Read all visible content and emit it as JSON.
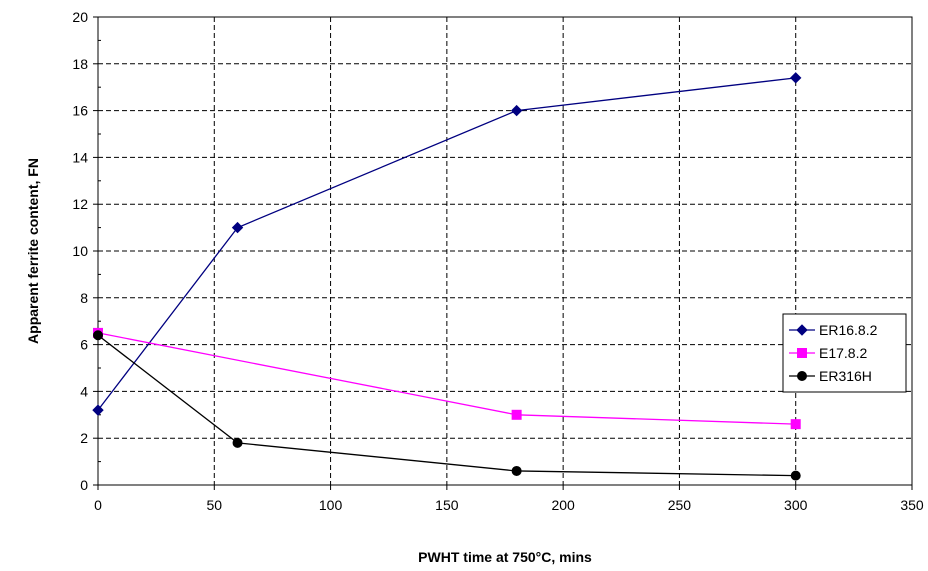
{
  "chart_data": {
    "type": "line",
    "title": "",
    "xlabel": "PWHT time at 750°C, mins",
    "ylabel": "Apparent ferrite content, FN",
    "xlim": [
      0,
      350
    ],
    "ylim": [
      0,
      20
    ],
    "xticks": [
      0,
      50,
      100,
      150,
      200,
      250,
      300,
      350
    ],
    "yticks": [
      0,
      2,
      4,
      6,
      8,
      10,
      12,
      14,
      16,
      18,
      20
    ],
    "grid": true,
    "legend_position": "right",
    "series": [
      {
        "name": "ER16.8.2",
        "marker": "diamond",
        "color": "#000080",
        "points": [
          [
            0,
            3.2
          ],
          [
            60,
            11.0
          ],
          [
            180,
            16.0
          ],
          [
            300,
            17.4
          ]
        ]
      },
      {
        "name": "E17.8.2",
        "marker": "square",
        "color": "#ff00ff",
        "points": [
          [
            0,
            6.5
          ],
          [
            180,
            3.0
          ],
          [
            300,
            2.6
          ]
        ]
      },
      {
        "name": "ER316H",
        "marker": "circle",
        "color": "#000000",
        "points": [
          [
            0,
            6.4
          ],
          [
            60,
            1.8
          ],
          [
            180,
            0.6
          ],
          [
            300,
            0.4
          ]
        ]
      }
    ]
  }
}
